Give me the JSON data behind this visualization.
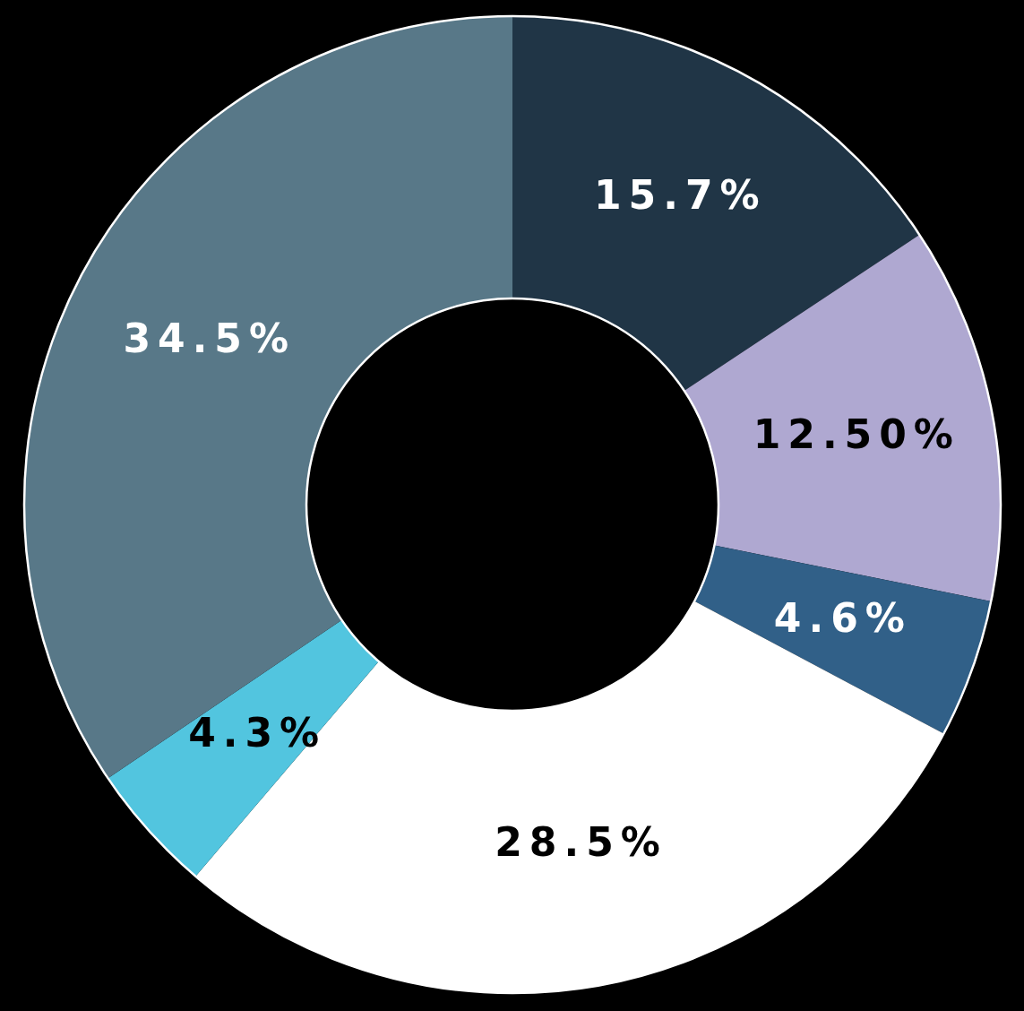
{
  "chart_data": {
    "type": "donut",
    "categories": [
      null,
      null,
      null,
      null,
      null,
      null
    ],
    "values": [
      15.7,
      12.5,
      4.6,
      28.5,
      4.3,
      34.5
    ],
    "colors": [
      "#203546",
      "#afa8d1",
      "#316088",
      "#ffffff",
      "#52c5df",
      "#587888"
    ],
    "value_labels": [
      "15.7%",
      "12.50%",
      "4.6%",
      "28.5%",
      "4.3%",
      "34.5%"
    ]
  }
}
